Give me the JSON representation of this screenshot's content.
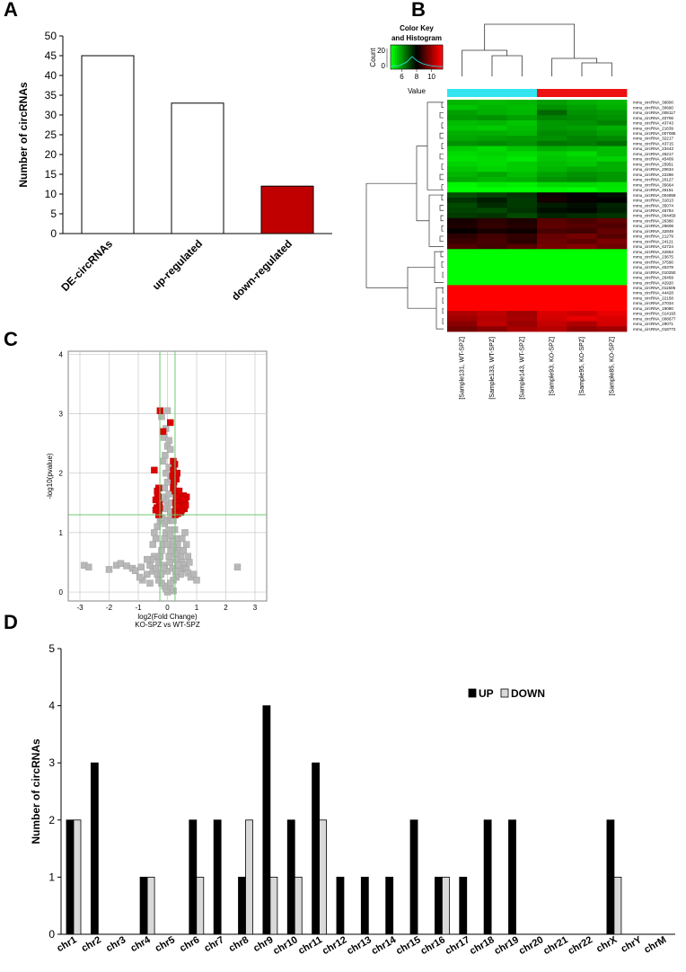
{
  "panels": {
    "a": {
      "letter": "A"
    },
    "b": {
      "letter": "B"
    },
    "c": {
      "letter": "C"
    },
    "d": {
      "letter": "D"
    }
  },
  "colors": {
    "red": "#dd0000",
    "dark_red_bar": "#c00000",
    "cyan": "#33e5f0",
    "green": "#00ff00",
    "gray_point": "#b8b8b8",
    "grid_green": "#6fc96f"
  },
  "chart_data": [
    {
      "type": "bar",
      "panel": "A",
      "categories": [
        "DE-circRNAs",
        "up-regulated",
        "down-regulated"
      ],
      "values": [
        45,
        33,
        12
      ],
      "bar_colors": [
        "#ffffff",
        "#ffffff",
        "#c00000"
      ],
      "ylabel": "Number of circRNAs",
      "ylim": [
        0,
        50
      ],
      "yticks": [
        0,
        5,
        10,
        15,
        20,
        25,
        30,
        35,
        40,
        45,
        50
      ]
    },
    {
      "type": "heatmap",
      "panel": "B",
      "color_key": {
        "title_line1": "Color Key",
        "title_line2": "and Histogram",
        "count_label": "Count",
        "count_ticks": [
          0,
          20
        ],
        "value_label": "Value",
        "value_ticks": [
          6,
          8,
          10
        ]
      },
      "columns": [
        "[Sample131, WT-SPZ]",
        "[Sample133, WT-SPZ]",
        "[Sample143, WT-SPZ]",
        "[Sample93, KO-SPZ]",
        "[Sample95, KO-SPZ]",
        "[Sample85, KO-SPZ]"
      ],
      "column_groups": [
        "cyan",
        "cyan",
        "cyan",
        "red",
        "red",
        "red"
      ],
      "rows": [
        "mmu_circRNA_36800",
        "mmu_circRNA_30690",
        "mmu_circRNA_008117",
        "mmu_circRNA_40706",
        "mmu_circRNA_43743",
        "mmu_circRNA_21639",
        "mmu_circRNA_007085",
        "mmu_circRNA_32217",
        "mmu_circRNA_43715",
        "mmu_circRNA_23443",
        "mmu_circRNA_45217",
        "mmu_circRNA_45409",
        "mmu_circRNA_25951",
        "mmu_circRNA_20634",
        "mmu_circRNA_22286",
        "mmu_circRNA_20127",
        "mmu_circRNA_35664",
        "mmu_circRNA_45151",
        "mmu_circRNA_004859",
        "mmu_circRNA_31813",
        "mmu_circRNA_35074",
        "mmu_circRNA_45784",
        "mmu_circRNA_004459",
        "mmu_circRNA_26380",
        "mmu_circRNA_29608",
        "mmu_circRNA_32849",
        "mmu_circRNA_21279",
        "mmu_circRNA_24121",
        "mmu_circRNA_42724",
        "mmu_circRNA_42653",
        "mmu_circRNA_23675",
        "mmu_circRNA_37590",
        "mmu_circRNA_45378",
        "mmu_circRNA_010250",
        "mmu_circRNA_26469",
        "mmu_circRNA_42920",
        "mmu_circRNA_011505",
        "mmu_circRNA_44428",
        "mmu_circRNA_22158",
        "mmu_circRNA_27034",
        "mmu_circRNA_19080",
        "mmu_circRNA_014193",
        "mmu_circRNA_008677",
        "mmu_circRNA_29071",
        "mmu_circRNA_018772"
      ],
      "values": [
        [
          5.5,
          5.4,
          5.5,
          5.8,
          5.6,
          5.5
        ],
        [
          5.3,
          5.5,
          5.4,
          6.0,
          5.8,
          5.6
        ],
        [
          5.8,
          5.6,
          5.5,
          6.6,
          6.0,
          5.9
        ],
        [
          5.9,
          6.0,
          5.8,
          6.2,
          6.1,
          6.0
        ],
        [
          5.4,
          5.5,
          5.3,
          5.9,
          6.0,
          6.2
        ],
        [
          5.3,
          5.2,
          5.4,
          5.9,
          5.8,
          5.6
        ],
        [
          5.6,
          5.6,
          5.5,
          6.1,
          6.0,
          5.8
        ],
        [
          5.7,
          5.8,
          5.9,
          6.0,
          6.2,
          6.1
        ],
        [
          6.0,
          6.1,
          6.0,
          6.4,
          6.3,
          6.5
        ],
        [
          5.2,
          5.0,
          5.3,
          5.6,
          5.5,
          5.4
        ],
        [
          5.0,
          5.1,
          5.0,
          5.2,
          5.0,
          5.4
        ],
        [
          4.9,
          5.0,
          4.8,
          5.3,
          5.2,
          5.1
        ],
        [
          5.1,
          5.0,
          5.2,
          5.4,
          5.3,
          5.6
        ],
        [
          5.3,
          5.1,
          5.2,
          5.5,
          5.7,
          5.6
        ],
        [
          5.5,
          5.7,
          5.4,
          5.8,
          6.0,
          5.9
        ],
        [
          5.7,
          5.5,
          5.6,
          6.0,
          6.1,
          5.9
        ],
        [
          4.6,
          4.8,
          4.7,
          5.0,
          5.0,
          4.9
        ],
        [
          4.2,
          4.4,
          4.1,
          4.6,
          4.5,
          4.8
        ],
        [
          6.9,
          7.1,
          7.3,
          8.2,
          8.0,
          7.8
        ],
        [
          7.3,
          7.6,
          7.2,
          8.3,
          8.1,
          8.0
        ],
        [
          7.0,
          7.4,
          7.2,
          7.6,
          7.8,
          7.5
        ],
        [
          7.1,
          7.0,
          7.3,
          7.8,
          7.9,
          7.6
        ],
        [
          7.2,
          7.3,
          7.0,
          7.5,
          7.4,
          7.3
        ],
        [
          8.3,
          8.6,
          8.4,
          9.2,
          9.0,
          9.3
        ],
        [
          8.4,
          8.7,
          8.5,
          9.3,
          9.2,
          9.1
        ],
        [
          8.1,
          8.3,
          8.2,
          9.0,
          8.9,
          9.4
        ],
        [
          8.6,
          8.9,
          8.7,
          9.4,
          9.6,
          9.2
        ],
        [
          8.8,
          9.0,
          8.6,
          9.5,
          9.3,
          9.7
        ],
        [
          9.1,
          8.9,
          9.2,
          9.6,
          9.8,
          9.5
        ],
        [
          4.0,
          4.0,
          4.0,
          4.0,
          4.0,
          4.0
        ],
        [
          4.0,
          4.3,
          4.4,
          4.0,
          4.1,
          4.0
        ],
        [
          4.2,
          4.5,
          4.0,
          4.1,
          4.0,
          4.2
        ],
        [
          4.0,
          4.0,
          4.3,
          4.0,
          4.0,
          4.1
        ],
        [
          4.1,
          4.2,
          4.0,
          4.0,
          4.2,
          4.0
        ],
        [
          4.0,
          4.1,
          4.2,
          4.0,
          4.0,
          4.0
        ],
        [
          4.2,
          4.0,
          4.1,
          4.1,
          4.0,
          4.0
        ],
        [
          11.5,
          11.5,
          11.5,
          11.5,
          11.5,
          11.5
        ],
        [
          11.5,
          11.5,
          11.5,
          11.5,
          11.5,
          11.5
        ],
        [
          11.5,
          11.5,
          11.5,
          11.5,
          11.5,
          11.5
        ],
        [
          11.5,
          11.5,
          11.5,
          11.5,
          11.5,
          11.5
        ],
        [
          11.5,
          11.5,
          11.5,
          11.5,
          11.5,
          11.5
        ],
        [
          10.4,
          10.6,
          10.2,
          11.0,
          10.8,
          11.2
        ],
        [
          10.2,
          10.5,
          10.3,
          10.9,
          11.2,
          11.0
        ],
        [
          9.9,
          10.6,
          10.1,
          10.7,
          10.4,
          10.9
        ],
        [
          9.6,
          9.9,
          10.3,
          10.5,
          10.0,
          10.2
        ]
      ]
    },
    {
      "type": "scatter",
      "panel": "C",
      "xlabel": "log2(Fold Change)",
      "subtitle": "KO-SPZ vs WT-SPZ",
      "ylabel": "-log10(pvalue)",
      "xlim": [
        -3.4,
        3.4
      ],
      "ylim": [
        -0.15,
        4.05
      ],
      "xticks": [
        -3,
        -2,
        -1,
        0,
        1,
        2,
        3
      ],
      "yticks": [
        0,
        1,
        2,
        3,
        4
      ],
      "pvalue_threshold": 1.3,
      "fold_change_thresholds": [
        -0.26,
        0.26
      ],
      "significant_points": [
        [
          -0.25,
          3.05
        ],
        [
          0.1,
          2.85
        ],
        [
          -0.15,
          2.7
        ],
        [
          0.2,
          2.2
        ],
        [
          0.25,
          2.15
        ],
        [
          0.2,
          2.05
        ],
        [
          0.18,
          1.95
        ],
        [
          0.3,
          1.9
        ],
        [
          0.22,
          1.85
        ],
        [
          -0.3,
          1.75
        ],
        [
          -0.35,
          1.7
        ],
        [
          0.2,
          1.75
        ],
        [
          0.26,
          1.7
        ],
        [
          0.38,
          1.65
        ],
        [
          0.45,
          1.6
        ],
        [
          0.55,
          1.62
        ],
        [
          0.6,
          1.55
        ],
        [
          0.35,
          1.58
        ],
        [
          0.5,
          1.5
        ],
        [
          0.42,
          1.45
        ],
        [
          0.3,
          1.42
        ],
        [
          -0.32,
          1.6
        ],
        [
          -0.4,
          1.55
        ],
        [
          -0.28,
          1.48
        ],
        [
          -0.36,
          1.42
        ],
        [
          0.27,
          1.36
        ],
        [
          0.58,
          1.4
        ],
        [
          0.35,
          1.32
        ],
        [
          -0.3,
          1.35
        ],
        [
          0.46,
          1.34
        ],
        [
          0.65,
          1.6
        ],
        [
          -0.45,
          2.05
        ],
        [
          0.33,
          2.0
        ],
        [
          0.28,
          1.5
        ],
        [
          0.48,
          1.38
        ],
        [
          -0.3,
          1.3
        ],
        [
          0.4,
          1.7
        ],
        [
          0.27,
          1.3
        ],
        [
          0.62,
          1.46
        ],
        [
          -0.27,
          1.42
        ],
        [
          -0.34,
          1.64
        ],
        [
          0.52,
          1.56
        ],
        [
          0.36,
          1.44
        ],
        [
          -0.4,
          1.38
        ],
        [
          0.3,
          1.6
        ]
      ],
      "nonsignificant_points": [
        [
          -2.85,
          0.45
        ],
        [
          -2.7,
          0.42
        ],
        [
          -2.0,
          0.38
        ],
        [
          -1.75,
          0.45
        ],
        [
          -1.6,
          0.48
        ],
        [
          -1.4,
          0.44
        ],
        [
          -1.2,
          0.4
        ],
        [
          -1.1,
          0.36
        ],
        [
          -0.9,
          0.42
        ],
        [
          -0.7,
          0.3
        ],
        [
          -0.6,
          0.45
        ],
        [
          2.4,
          0.42
        ],
        [
          -0.85,
          0.2
        ],
        [
          -0.6,
          0.15
        ],
        [
          -0.5,
          0.35
        ],
        [
          -0.45,
          0.6
        ],
        [
          -0.4,
          0.9
        ],
        [
          -0.35,
          1.1
        ],
        [
          -0.25,
          1.2
        ],
        [
          -0.2,
          1.25
        ],
        [
          -0.15,
          1.22
        ],
        [
          -0.1,
          1.15
        ],
        [
          0.0,
          1.2
        ],
        [
          0.1,
          1.22
        ],
        [
          0.15,
          1.25
        ],
        [
          0.2,
          1.2
        ],
        [
          0.25,
          1.05
        ],
        [
          0.3,
          0.9
        ],
        [
          0.35,
          0.8
        ],
        [
          0.4,
          0.7
        ],
        [
          0.45,
          0.6
        ],
        [
          0.5,
          0.5
        ],
        [
          0.55,
          0.45
        ],
        [
          0.6,
          0.4
        ],
        [
          0.65,
          0.38
        ],
        [
          0.7,
          0.32
        ],
        [
          0.2,
          0.02
        ],
        [
          0.1,
          0.05
        ],
        [
          0.0,
          0.0
        ],
        [
          -0.05,
          0.05
        ],
        [
          -0.1,
          0.1
        ],
        [
          -0.2,
          0.15
        ],
        [
          -0.3,
          0.2
        ],
        [
          -0.35,
          0.3
        ],
        [
          -0.4,
          0.4
        ],
        [
          -0.3,
          0.5
        ],
        [
          -0.25,
          0.6
        ],
        [
          -0.2,
          0.7
        ],
        [
          -0.15,
          0.8
        ],
        [
          -0.1,
          0.9
        ],
        [
          -0.05,
          1.0
        ],
        [
          0.05,
          1.05
        ],
        [
          0.1,
          0.95
        ],
        [
          0.15,
          0.85
        ],
        [
          0.2,
          0.75
        ],
        [
          0.25,
          0.65
        ],
        [
          0.3,
          0.55
        ],
        [
          0.35,
          0.45
        ],
        [
          0.4,
          0.35
        ],
        [
          0.45,
          0.3
        ],
        [
          0.3,
          0.25
        ],
        [
          0.2,
          0.2
        ],
        [
          0.1,
          0.15
        ],
        [
          0.0,
          0.35
        ],
        [
          -0.1,
          0.45
        ],
        [
          0.05,
          0.6
        ],
        [
          0.12,
          0.7
        ],
        [
          -0.02,
          0.8
        ],
        [
          0.08,
          0.5
        ],
        [
          -0.15,
          0.4
        ],
        [
          0.18,
          0.4
        ],
        [
          0.28,
          0.35
        ],
        [
          -0.22,
          0.3
        ],
        [
          0.1,
          1.35
        ],
        [
          0.0,
          1.45
        ],
        [
          -0.05,
          1.55
        ],
        [
          0.05,
          1.65
        ],
        [
          -0.1,
          1.75
        ],
        [
          0.0,
          1.85
        ],
        [
          -0.05,
          2.0
        ],
        [
          0.05,
          2.1
        ],
        [
          -0.08,
          2.3
        ],
        [
          0.0,
          2.45
        ],
        [
          -0.12,
          2.6
        ],
        [
          0.05,
          2.55
        ],
        [
          -0.2,
          2.95
        ],
        [
          0.0,
          3.05
        ],
        [
          -0.05,
          2.75
        ],
        [
          0.1,
          2.4
        ],
        [
          -0.15,
          2.2
        ],
        [
          0.15,
          1.5
        ],
        [
          -0.18,
          1.6
        ],
        [
          0.12,
          1.9
        ],
        [
          -0.12,
          1.4
        ],
        [
          0.5,
          0.9
        ],
        [
          0.55,
          0.7
        ],
        [
          -0.5,
          0.8
        ],
        [
          -0.55,
          0.55
        ],
        [
          0.75,
          0.5
        ],
        [
          0.8,
          0.25
        ],
        [
          -0.7,
          0.55
        ],
        [
          0.9,
          0.3
        ],
        [
          -0.95,
          0.25
        ],
        [
          1.0,
          0.2
        ],
        [
          0.6,
          1.0
        ],
        [
          -0.45,
          1.0
        ],
        [
          0.65,
          0.8
        ],
        [
          0.7,
          0.6
        ]
      ]
    },
    {
      "type": "bar",
      "panel": "D",
      "categories": [
        "chr1",
        "chr2",
        "chr3",
        "chr4",
        "chr5",
        "chr6",
        "chr7",
        "chr8",
        "chr9",
        "chr10",
        "chr11",
        "chr12",
        "chr13",
        "chr14",
        "chr15",
        "chr16",
        "chr17",
        "chr18",
        "chr19",
        "chr20",
        "chr21",
        "chr22",
        "chrX",
        "chrY",
        "chrM"
      ],
      "series": [
        {
          "name": "UP",
          "color": "#000000",
          "values": [
            2,
            3,
            0,
            1,
            0,
            2,
            2,
            1,
            4,
            2,
            3,
            1,
            1,
            1,
            2,
            1,
            1,
            2,
            2,
            0,
            0,
            0,
            2,
            0,
            0
          ]
        },
        {
          "name": "DOWN",
          "color": "#d9d9d9",
          "values": [
            2,
            0,
            0,
            1,
            0,
            1,
            0,
            2,
            1,
            1,
            2,
            0,
            0,
            0,
            0,
            1,
            0,
            0,
            0,
            0,
            0,
            0,
            1,
            0,
            0
          ]
        }
      ],
      "ylabel": "Number of circRNAs",
      "ylim": [
        0,
        5
      ],
      "yticks": [
        0,
        1,
        2,
        3,
        4,
        5
      ],
      "legend": "top-right"
    }
  ]
}
